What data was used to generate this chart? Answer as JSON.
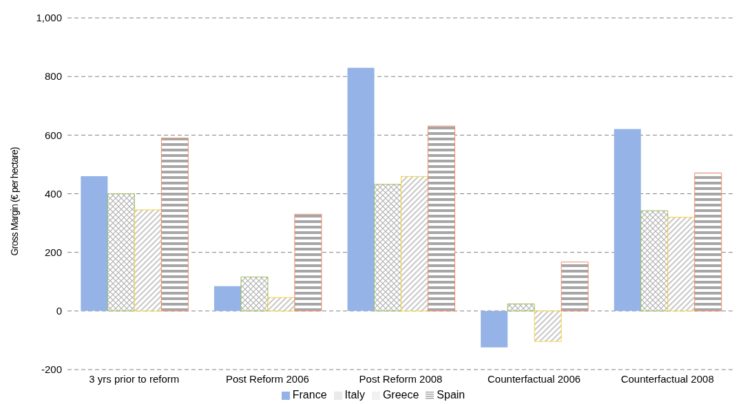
{
  "chart_data": {
    "type": "bar",
    "ylabel": "Gross Margin (€ per hectare)",
    "categories": [
      "3 yrs prior to reform",
      "Post Reform 2006",
      "Post Reform 2008",
      "Counterfactual  2006",
      "Counterfactual  2008"
    ],
    "series": [
      {
        "name": "France",
        "color": "#95b3e6",
        "values": [
          460,
          85,
          830,
          -124,
          621
        ]
      },
      {
        "name": "Italy",
        "color": "#9bbb59",
        "values": [
          400,
          116,
          432,
          24,
          342
        ]
      },
      {
        "name": "Greece",
        "color": "#f5d33b",
        "values": [
          345,
          46,
          459,
          -104,
          320
        ]
      },
      {
        "name": "Spain",
        "color": "#f08a6e",
        "values": [
          590,
          330,
          631,
          167,
          471
        ]
      }
    ],
    "ylim": [
      -200,
      1000
    ],
    "yticks": [
      -200,
      0,
      200,
      400,
      600,
      800,
      {
        "value": 1000,
        "label": "1,000"
      }
    ],
    "grid": "y",
    "legend": "bottom"
  }
}
